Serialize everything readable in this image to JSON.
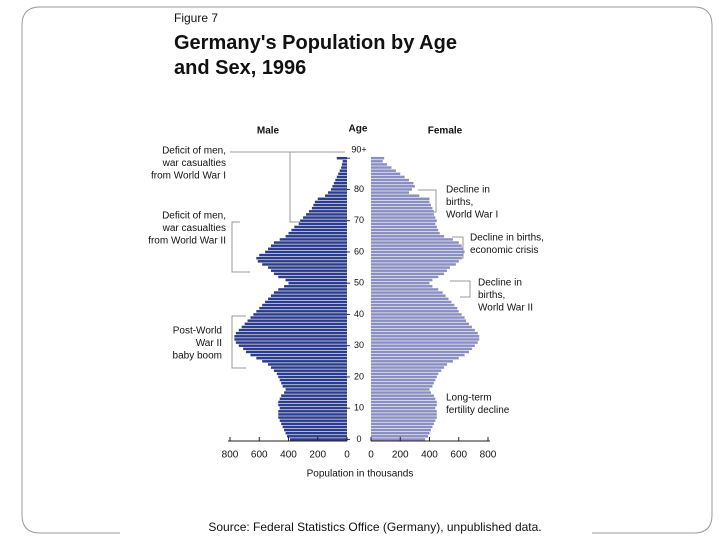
{
  "chart_data": {
    "type": "pyramid",
    "figure_label": "Figure 7",
    "title_lines": [
      "Germany's Population by Age",
      "and Sex, 1996"
    ],
    "left_heading": "Male",
    "center_heading": "Age",
    "right_heading": "Female",
    "x_label": "Population in thousands",
    "source": "Source: Federal Statistics Office (Germany), unpublished data.",
    "categories": [
      0,
      null,
      null,
      null,
      null,
      null,
      null,
      null,
      null,
      null,
      10,
      null,
      null,
      null,
      null,
      null,
      null,
      null,
      null,
      null,
      20,
      null,
      null,
      null,
      null,
      null,
      null,
      null,
      null,
      null,
      30,
      null,
      null,
      null,
      null,
      null,
      null,
      null,
      null,
      null,
      40,
      null,
      null,
      null,
      null,
      null,
      null,
      null,
      null,
      null,
      50,
      null,
      null,
      null,
      null,
      null,
      null,
      null,
      null,
      null,
      60,
      null,
      null,
      null,
      null,
      null,
      null,
      null,
      null,
      null,
      70,
      null,
      null,
      null,
      null,
      null,
      null,
      null,
      null,
      null,
      80,
      null,
      null,
      null,
      null,
      null,
      null,
      null,
      null,
      null,
      "90+"
    ],
    "series": [
      {
        "name": "Male",
        "color": "#2b3c8c",
        "values": [
          390,
          410,
          420,
          430,
          440,
          450,
          460,
          470,
          470,
          470,
          460,
          470,
          470,
          460,
          450,
          430,
          420,
          440,
          450,
          460,
          470,
          480,
          500,
          520,
          540,
          580,
          620,
          660,
          690,
          710,
          740,
          760,
          770,
          770,
          760,
          740,
          720,
          700,
          680,
          660,
          640,
          620,
          600,
          580,
          560,
          540,
          520,
          500,
          470,
          430,
          400,
          420,
          470,
          500,
          520,
          540,
          580,
          610,
          620,
          600,
          560,
          540,
          520,
          500,
          460,
          420,
          400,
          380,
          360,
          330,
          320,
          300,
          280,
          260,
          240,
          230,
          220,
          200,
          150,
          130,
          110,
          100,
          90,
          80,
          70,
          60,
          50,
          40,
          35,
          30,
          70
        ]
      },
      {
        "name": "Female",
        "color": "#8a8fc2",
        "values": [
          370,
          390,
          400,
          410,
          420,
          430,
          440,
          450,
          450,
          450,
          440,
          450,
          450,
          440,
          430,
          410,
          400,
          420,
          430,
          440,
          450,
          460,
          480,
          500,
          520,
          560,
          600,
          640,
          670,
          690,
          710,
          730,
          740,
          740,
          730,
          710,
          690,
          670,
          650,
          640,
          620,
          600,
          590,
          570,
          550,
          530,
          510,
          490,
          460,
          420,
          400,
          420,
          460,
          500,
          520,
          540,
          580,
          600,
          620,
          630,
          640,
          630,
          620,
          600,
          560,
          500,
          470,
          460,
          450,
          440,
          450,
          440,
          430,
          430,
          420,
          410,
          400,
          400,
          330,
          260,
          280,
          300,
          290,
          260,
          230,
          200,
          170,
          140,
          110,
          80,
          90
        ]
      }
    ],
    "xlim": [
      0,
      800
    ],
    "xticks": [
      0,
      200,
      400,
      600,
      800
    ],
    "annotations": [
      {
        "lines": [
          "Deficit of men,",
          "war casualties",
          "from World War I"
        ]
      },
      {
        "lines": [
          "Deficit of men,",
          "war casualties",
          "from World War II"
        ]
      },
      {
        "lines": [
          "Post-World",
          "War II",
          "baby boom"
        ]
      },
      {
        "lines": [
          "Decline in",
          "births,",
          "World War I"
        ]
      },
      {
        "lines": [
          "Decline in births,",
          "economic crisis"
        ]
      },
      {
        "lines": [
          "Decline in",
          "births,",
          "World War II"
        ]
      },
      {
        "lines": [
          "Long-term",
          "fertility decline"
        ]
      }
    ]
  }
}
